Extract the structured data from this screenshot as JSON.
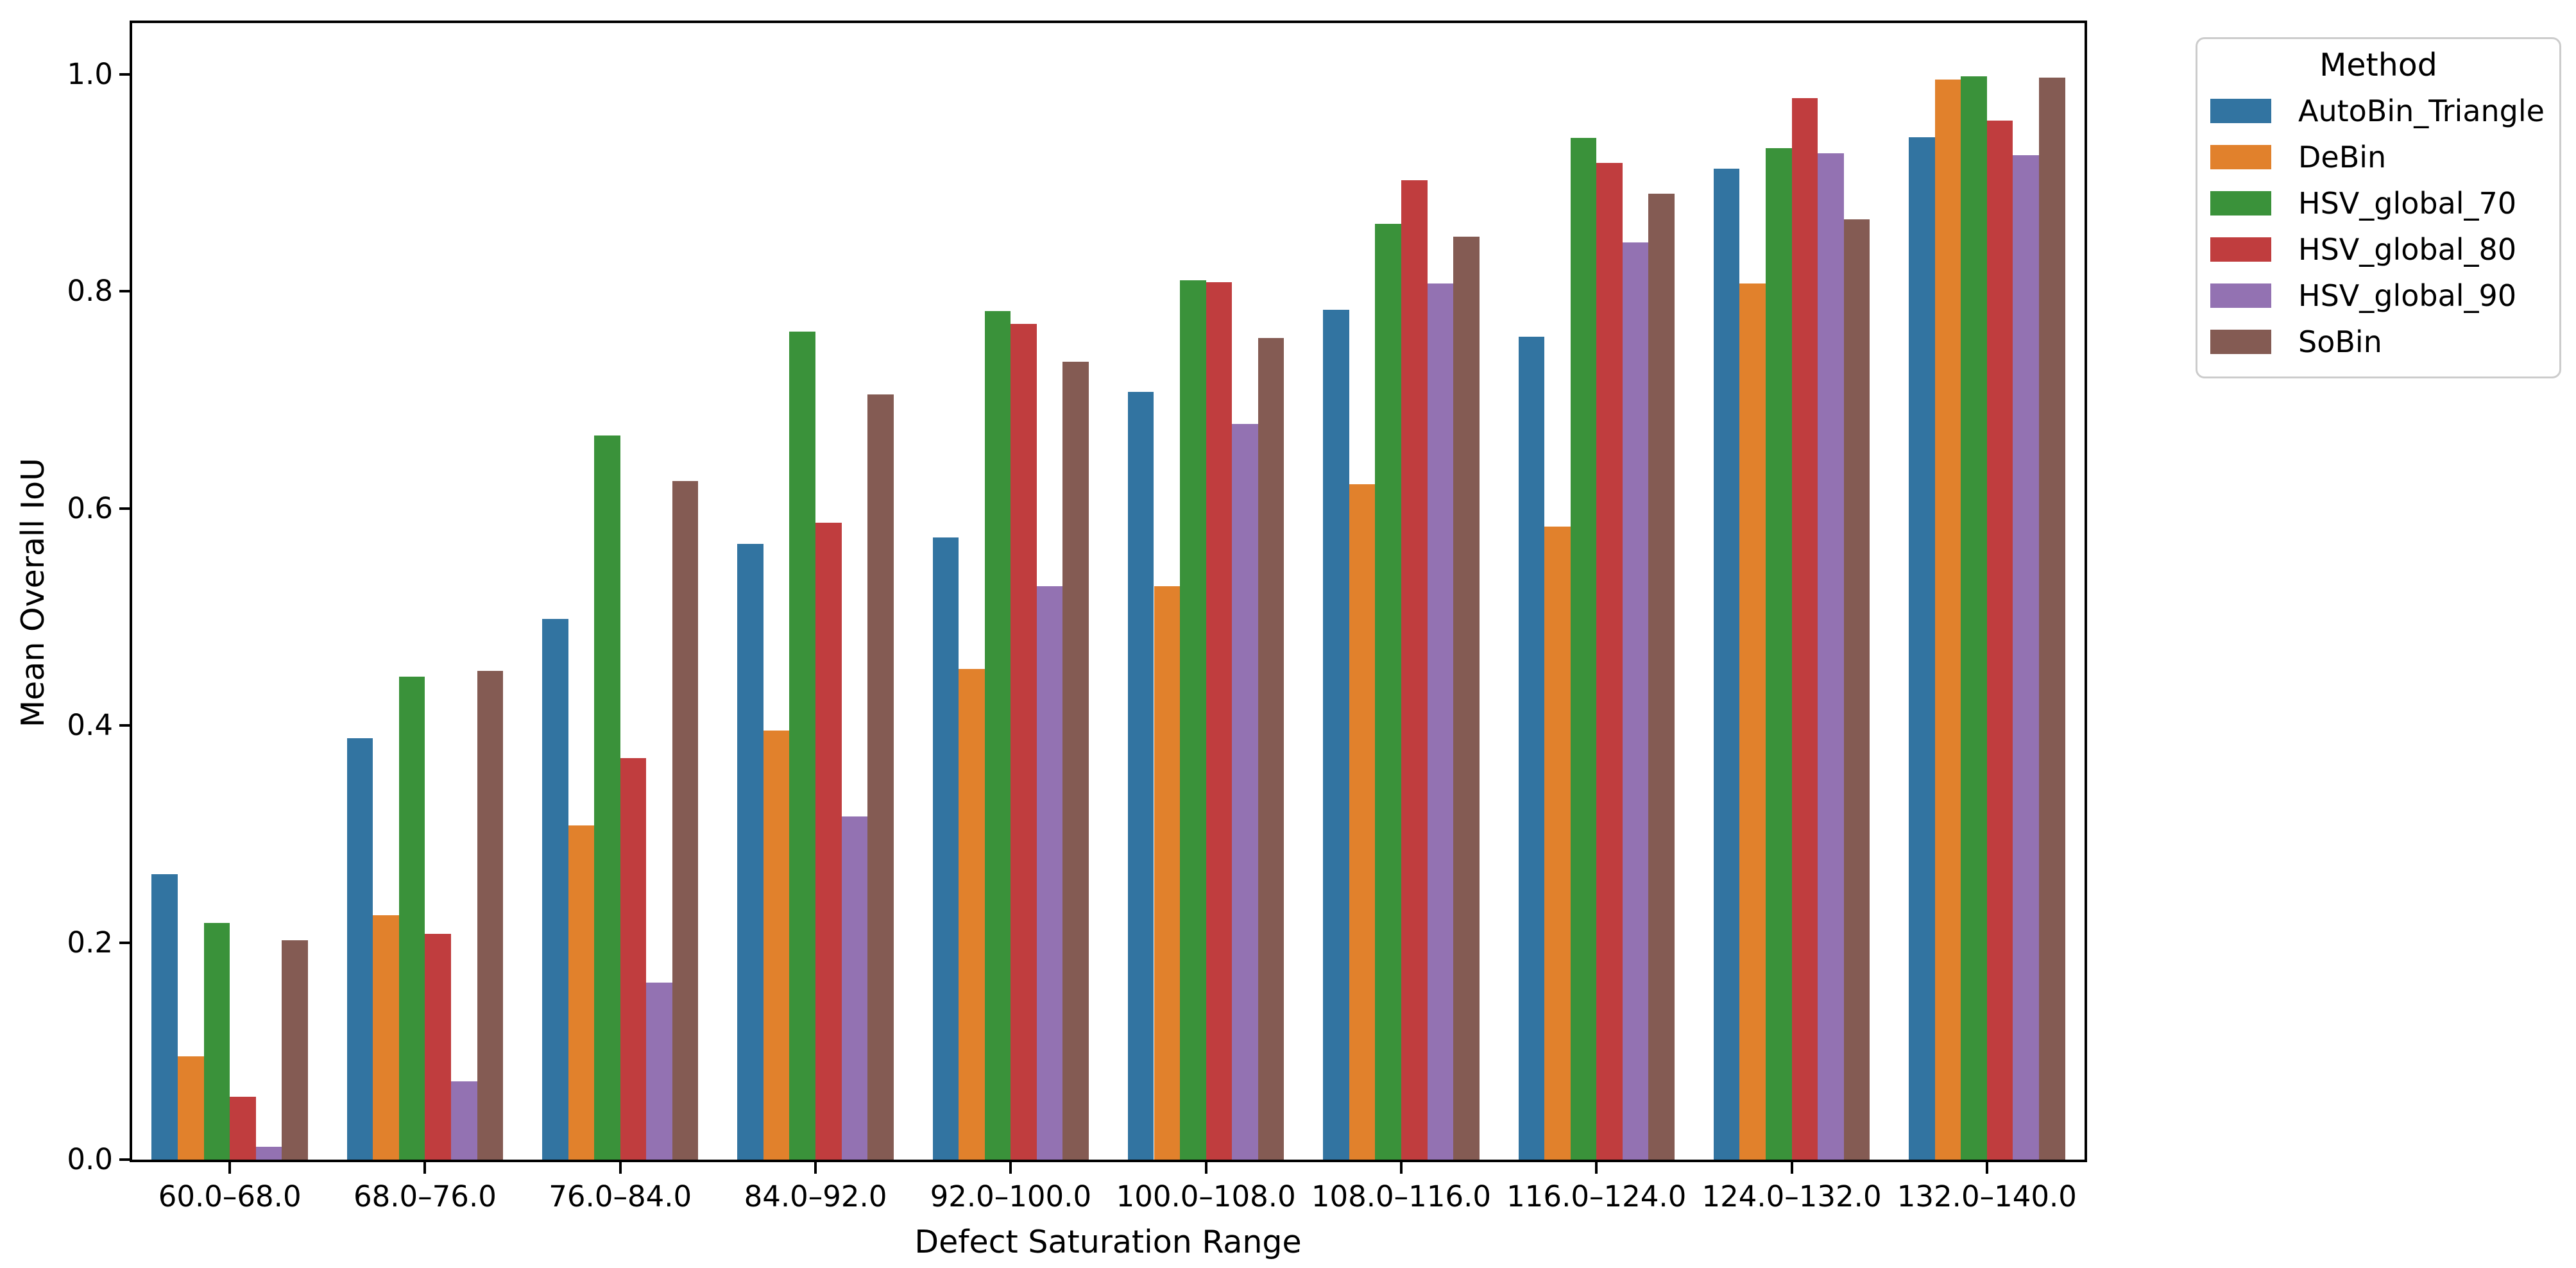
{
  "chart_data": {
    "type": "bar",
    "title": "",
    "xlabel": "Defect Saturation Range",
    "ylabel": "Mean Overall IoU",
    "legend_title": "Method",
    "legend_position": "upper right, outside axes",
    "grid": false,
    "ylim": [
      0.0,
      1.047
    ],
    "yticks": [
      0.0,
      0.2,
      0.4,
      0.6,
      0.8,
      1.0
    ],
    "ytick_labels": [
      "0.0",
      "0.2",
      "0.4",
      "0.6",
      "0.8",
      "1.0"
    ],
    "categories": [
      "60.0–68.0",
      "68.0–76.0",
      "76.0–84.0",
      "84.0–92.0",
      "92.0–100.0",
      "100.0–108.0",
      "108.0–116.0",
      "116.0–124.0",
      "124.0–132.0",
      "132.0–140.0"
    ],
    "series": [
      {
        "name": "AutoBin_Triangle",
        "color": "#3274a1",
        "values": [
          0.263,
          0.388,
          0.498,
          0.567,
          0.573,
          0.707,
          0.783,
          0.758,
          0.913,
          0.942
        ]
      },
      {
        "name": "DeBin",
        "color": "#e1812c",
        "values": [
          0.095,
          0.225,
          0.308,
          0.395,
          0.452,
          0.528,
          0.622,
          0.583,
          0.807,
          0.995
        ]
      },
      {
        "name": "HSV_global_70",
        "color": "#3a923a",
        "values": [
          0.218,
          0.445,
          0.667,
          0.763,
          0.782,
          0.81,
          0.862,
          0.941,
          0.932,
          0.998
        ]
      },
      {
        "name": "HSV_global_80",
        "color": "#c03d3e",
        "values": [
          0.058,
          0.208,
          0.37,
          0.587,
          0.77,
          0.808,
          0.902,
          0.918,
          0.978,
          0.957
        ]
      },
      {
        "name": "HSV_global_90",
        "color": "#9372b2",
        "values": [
          0.012,
          0.072,
          0.163,
          0.316,
          0.528,
          0.678,
          0.807,
          0.845,
          0.927,
          0.925
        ]
      },
      {
        "name": "SoBin",
        "color": "#845b53",
        "values": [
          0.202,
          0.45,
          0.625,
          0.705,
          0.735,
          0.757,
          0.85,
          0.89,
          0.866,
          0.997
        ]
      }
    ],
    "colors": {
      "axis": "#000000",
      "legend_border": "#cccccc",
      "background": "#ffffff"
    }
  }
}
